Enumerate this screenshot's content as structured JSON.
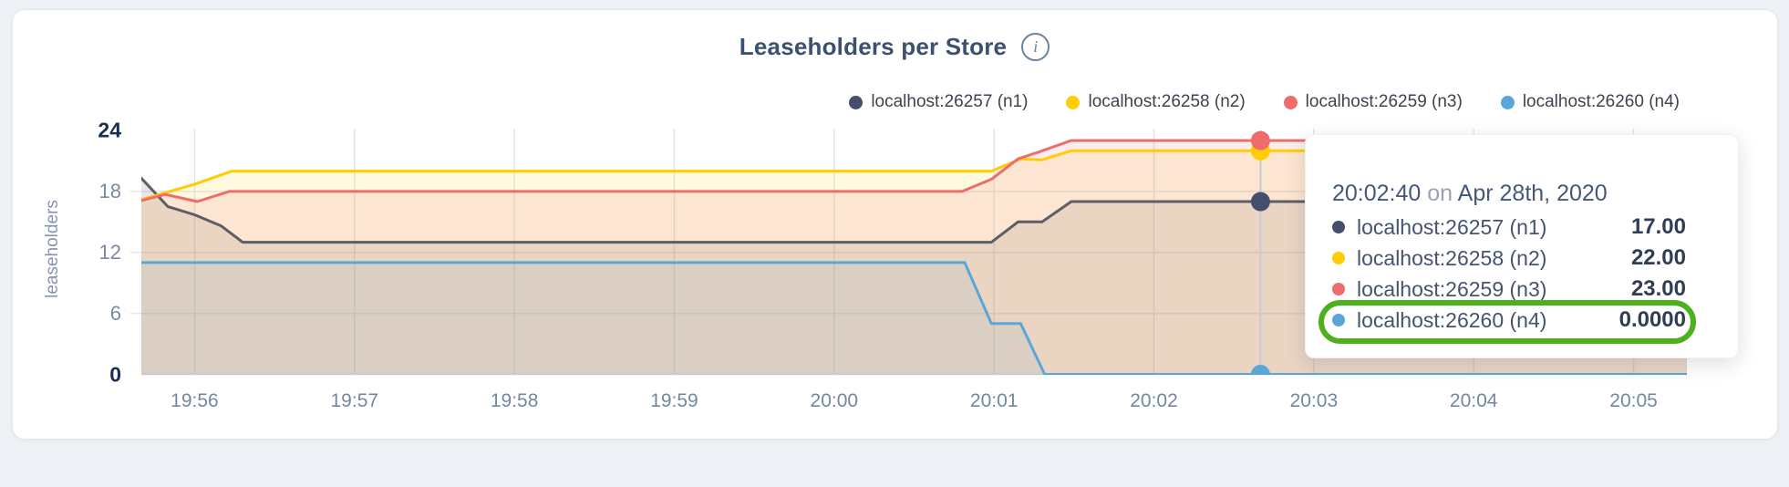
{
  "header": {
    "title": "Leaseholders per Store",
    "info_icon": "i"
  },
  "axes": {
    "ylabel": "leaseholders",
    "y_ticks": [
      {
        "value": 0,
        "emphasized": true
      },
      {
        "value": 6,
        "emphasized": false
      },
      {
        "value": 12,
        "emphasized": false
      },
      {
        "value": 18,
        "emphasized": false
      },
      {
        "value": 24,
        "emphasized": true
      }
    ],
    "x_ticks": [
      {
        "t": 20,
        "label": "19:56"
      },
      {
        "t": 80,
        "label": "19:57"
      },
      {
        "t": 140,
        "label": "19:58"
      },
      {
        "t": 200,
        "label": "19:59"
      },
      {
        "t": 260,
        "label": "20:00"
      },
      {
        "t": 320,
        "label": "20:01"
      },
      {
        "t": 380,
        "label": "20:02"
      },
      {
        "t": 440,
        "label": "20:03"
      },
      {
        "t": 500,
        "label": "20:04"
      },
      {
        "t": 560,
        "label": "20:05"
      }
    ]
  },
  "chart_data": {
    "type": "area",
    "title": "Leaseholders per Store",
    "xlabel": "",
    "ylabel": "leaseholders",
    "ylim": [
      0,
      24
    ],
    "x_domain_seconds": [
      0,
      580
    ],
    "x_domain_times": [
      "19:55:40",
      "20:05:20"
    ],
    "grid": true,
    "legend_position": "top-right",
    "series": [
      {
        "name": "localhost:26257 (n1)",
        "color": "#44506b",
        "line_color": "#5b5d69",
        "fill_opacity": 0.13,
        "points": [
          [
            0,
            19.3
          ],
          [
            10,
            16.5
          ],
          [
            20,
            15.7
          ],
          [
            30,
            14.6
          ],
          [
            38,
            13
          ],
          [
            319,
            13
          ],
          [
            329,
            15
          ],
          [
            338,
            15
          ],
          [
            349,
            17
          ],
          [
            580,
            17
          ]
        ]
      },
      {
        "name": "localhost:26258 (n2)",
        "color": "#ffcd02",
        "line_color": "#ffcd02",
        "fill_opacity": 0.12,
        "points": [
          [
            0,
            17.2
          ],
          [
            20,
            18.7
          ],
          [
            34,
            20
          ],
          [
            319,
            20
          ],
          [
            330,
            21.2
          ],
          [
            338,
            21.1
          ],
          [
            349,
            22
          ],
          [
            580,
            22
          ]
        ]
      },
      {
        "name": "localhost:26259 (n3)",
        "color": "#ef6c6c",
        "line_color": "#ef6c6c",
        "fill_opacity": 0.13,
        "points": [
          [
            0,
            17.1
          ],
          [
            9,
            17.7
          ],
          [
            21,
            17.0
          ],
          [
            33,
            18
          ],
          [
            308,
            18
          ],
          [
            319,
            19.2
          ],
          [
            329,
            21.2
          ],
          [
            337,
            21.9
          ],
          [
            349,
            23
          ],
          [
            580,
            23
          ]
        ]
      },
      {
        "name": "localhost:26260 (n4)",
        "color": "#58a7d8",
        "line_color": "#58a7d8",
        "fill_opacity": 0.1,
        "points": [
          [
            0,
            11
          ],
          [
            309,
            11
          ],
          [
            319,
            5
          ],
          [
            330,
            5
          ],
          [
            339,
            0
          ],
          [
            580,
            0
          ]
        ]
      }
    ],
    "hover": {
      "t": 420,
      "time_label": "20:02:40",
      "values": [
        17,
        22,
        23,
        0
      ]
    }
  },
  "tooltip": {
    "time": "20:02:40",
    "on_word": "on",
    "date": "Apr 28th, 2020",
    "rows": [
      {
        "label": "localhost:26257 (n1)",
        "value": "17.00",
        "color": "#44506b"
      },
      {
        "label": "localhost:26258 (n2)",
        "value": "22.00",
        "color": "#ffcd02"
      },
      {
        "label": "localhost:26259 (n3)",
        "value": "23.00",
        "color": "#ef6c6c"
      },
      {
        "label": "localhost:26260 (n4)",
        "value": "0.0000",
        "color": "#58a7d8"
      }
    ],
    "highlight_row_index": 3,
    "highlight_color": "#4db11d"
  },
  "colors": {
    "page_background": "#edf0f4",
    "card_background": "#ffffff",
    "grid_vertical": "#dfe5ed",
    "grid_horizontal": "#e3e7ec",
    "baseline": "#d2d7dd",
    "hover_line": "#c5ccd6"
  }
}
